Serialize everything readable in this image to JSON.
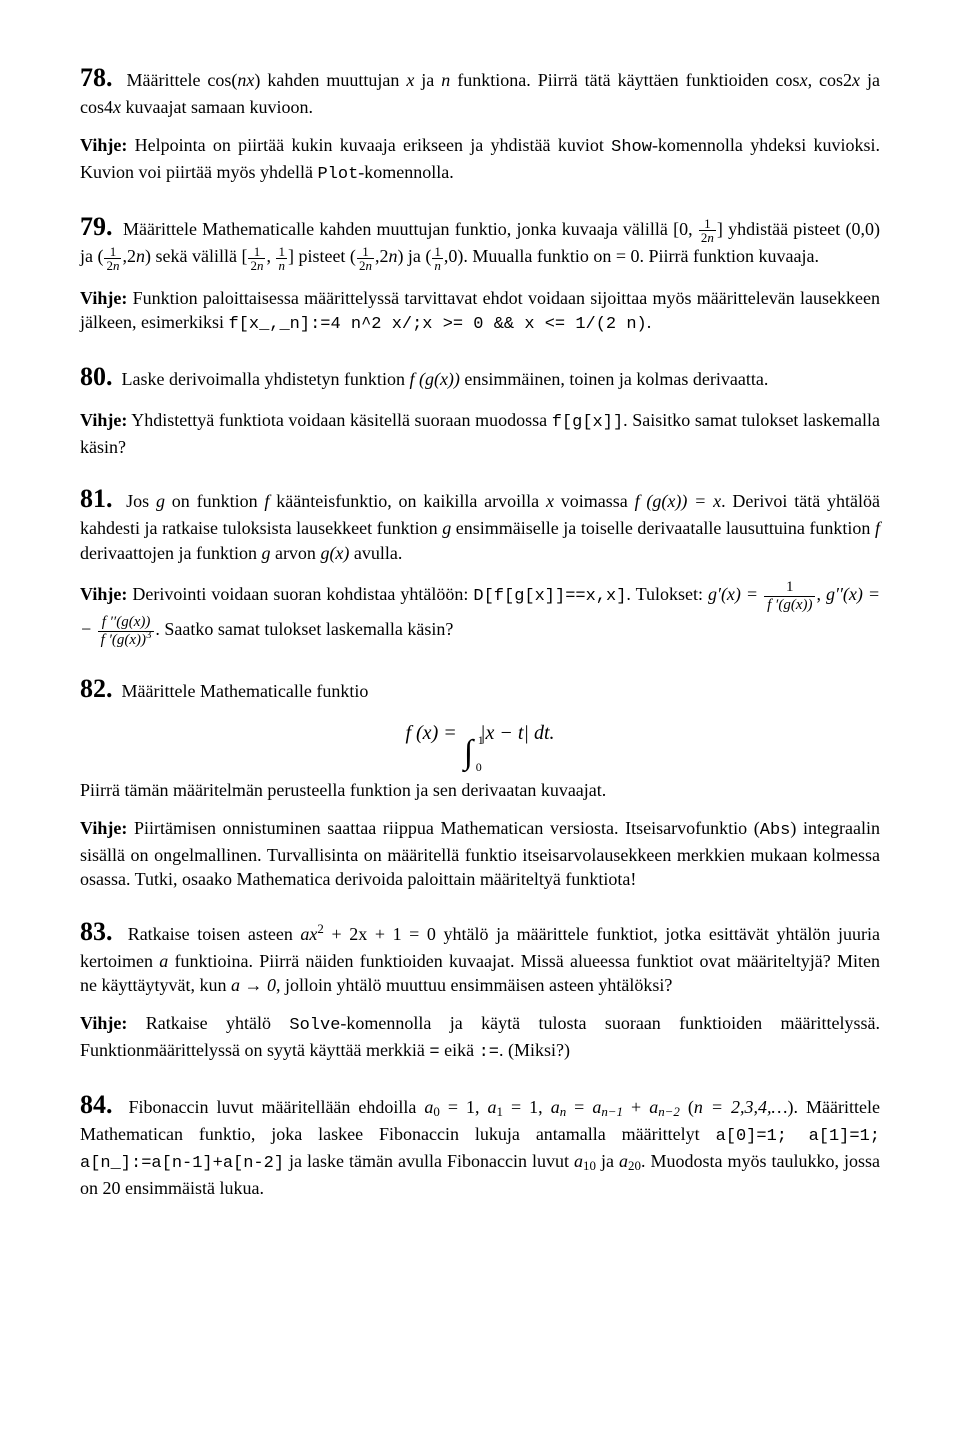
{
  "ex78": {
    "num": "78.",
    "text1": "Määrittele cos(",
    "text2": ") kahden muuttujan ",
    "text3": " ja ",
    "text4": " funktiona. Piirrä tätä käyttäen funktioiden cos",
    "text5": ", cos2",
    "text6": " ja cos4",
    "text7": " kuvaajat samaan kuvioon.",
    "v1a": "Vihje:",
    "v1b": " Helpointa on piirtää kukin kuvaaja erikseen ja yhdistää kuviot ",
    "v1c": "-komennolla yhdeksi kuvioksi. Kuvion voi piirtää myös yhdellä ",
    "v1d": "-komennolla.",
    "code1": "Show",
    "code2": "Plot",
    "nx": "nx",
    "x": "x",
    "n": "n"
  },
  "ex79": {
    "num": "79.",
    "t1": "Määrittele Mathematicalle kahden muuttujan funktio, jonka kuvaaja välillä [0, ",
    "t2": "] yhdistää pisteet (0,0) ja (",
    "t3": ",2",
    "t4": ") sekä välillä [",
    "t5": ", ",
    "t6": "] pisteet (",
    "t7": ",2",
    "t8": ") ja (",
    "t9": ",0). Muualla funktio on = 0. Piirrä funktion kuvaaja.",
    "v1a": "Vihje:",
    "v1b": " Funktion paloittaisessa määrittelyssä tarvittavat ehdot voidaan sijoittaa myös määrittelevän lausekkeen jälkeen, esimerkiksi ",
    "code1": "f[x_,_n]:=4 n^2 x/;x >= 0 && x <= 1/(2 n)",
    "v1c": ".",
    "n": "n"
  },
  "ex80": {
    "num": "80.",
    "t1": "Laske derivoimalla yhdistetyn funktion ",
    "t2": " ensimmäinen, toinen ja kolmas derivaatta.",
    "fx": "f (g(x))",
    "v1a": "Vihje:",
    "v1b": " Yhdistettyä funktiota voidaan käsitellä suoraan muodossa ",
    "code1": "f[g[x]]",
    "v1c": ". Saisitko samat tulokset laskemalla käsin?"
  },
  "ex81": {
    "num": "81.",
    "t1": "Jos ",
    "t2": " on funktion ",
    "t3": " käänteisfunktio, on kaikilla arvoilla ",
    "t4": " voimassa ",
    "t5": ". Derivoi tätä yhtälöä kahdesti ja ratkaise tuloksista lausekkeet funktion ",
    "t6": " ensimmäiselle ja toiselle derivaatalle lausuttuina funktion ",
    "t7": " derivaattojen ja funktion ",
    "t8": " arvon ",
    "t9": " avulla.",
    "g": "g",
    "f": "f",
    "x": "x",
    "fgx": "f (g(x)) = x",
    "gx": "g(x)",
    "v1a": "Vihje:",
    "v1b": " Derivointi voidaan suoran kohdistaa yhtälöön: ",
    "code1": "D[f[g[x]]==x,x]",
    "v1c": ". Tulokset: ",
    "gpx": "g′(x) =",
    "gppx": "g′′(x) = −",
    "num1_n": "1",
    "num1_d": "f ′(g(x))",
    "num2_n": "f ′′(g(x))",
    "num2_d": "f ′(g(x))",
    "pow3": "3",
    "v1d": ". Saatko samat tulokset laskemalla käsin?"
  },
  "ex82": {
    "num": "82.",
    "t1": "Määrittele Mathematicalle funktio",
    "math": "f (x) =",
    "int_lo": "0",
    "int_hi": "1",
    "integrand": "|x − t| dt.",
    "t2": "Piirrä tämän määritelmän perusteella funktion ja sen derivaatan kuvaajat.",
    "v1a": "Vihje:",
    "v1b": " Piirtämisen onnistuminen saattaa riippua Mathematican versiosta. Itseisarvofunktio (",
    "code1": "Abs",
    "v1c": ") integraalin sisällä on ongelmallinen. Turvallisinta on määritellä funktio itseisarvolausekkeen merkkien mukaan kolmessa osassa. Tutki, osaako Mathematica derivoida paloittain määriteltyä funktiota!"
  },
  "ex83": {
    "num": "83.",
    "t1": "Ratkaise toisen asteen ",
    "eq": "ax",
    "sq": "2",
    "eq2": " + 2x + 1 = 0 yhtälö ja määrittele funktiot, jotka esittävät yhtälön juuria kertoimen ",
    "a": "a",
    "t2": " funktioina. Piirrä näiden funktioiden kuvaajat. Missä alueessa funktiot ovat määriteltyjä? Miten ne käyttäytyvät, kun ",
    "lim": "a → 0",
    "t3": ", jolloin yhtälö muuttuu ensimmäisen asteen yhtälöksi?",
    "v1a": "Vihje:",
    "v1b": " Ratkaise yhtälö ",
    "code1": "Solve",
    "v1c": "-komennolla ja käytä tulosta suoraan funktioiden määrittelyssä. Funktionmäärittelyssä on syytä käyttää merkkiä ",
    "code2": "=",
    "v1d": " eikä ",
    "code3": ":=",
    "v1e": ". (Miksi?)"
  },
  "ex84": {
    "num": "84.",
    "t1": "Fibonaccin luvut määritellään ehdoilla ",
    "eq": "a",
    "s0": "0",
    "e1": " = 1, ",
    "s1": "1",
    "e2": " = 1, ",
    "sn": "n",
    "e3": " = ",
    "snm1": "n−1",
    "e4": " + ",
    "snm2": "n−2",
    "e5": " (",
    "range": "n = 2,3,4,…",
    "e6": "). Määrittele Mathematican funktio, joka laskee Fibonaccin lukuja antamalla määrittelyt ",
    "code1": "a[0]=1; a[1]=1; a[n_]:=a[n-1]+a[n-2]",
    "e7": " ja laske tämän avulla Fibonaccin luvut ",
    "s10": "10",
    "e8": " ja ",
    "s20": "20",
    "e9": ". Muodosta myös taulukko, jossa on 20 ensimmäistä lukua."
  }
}
